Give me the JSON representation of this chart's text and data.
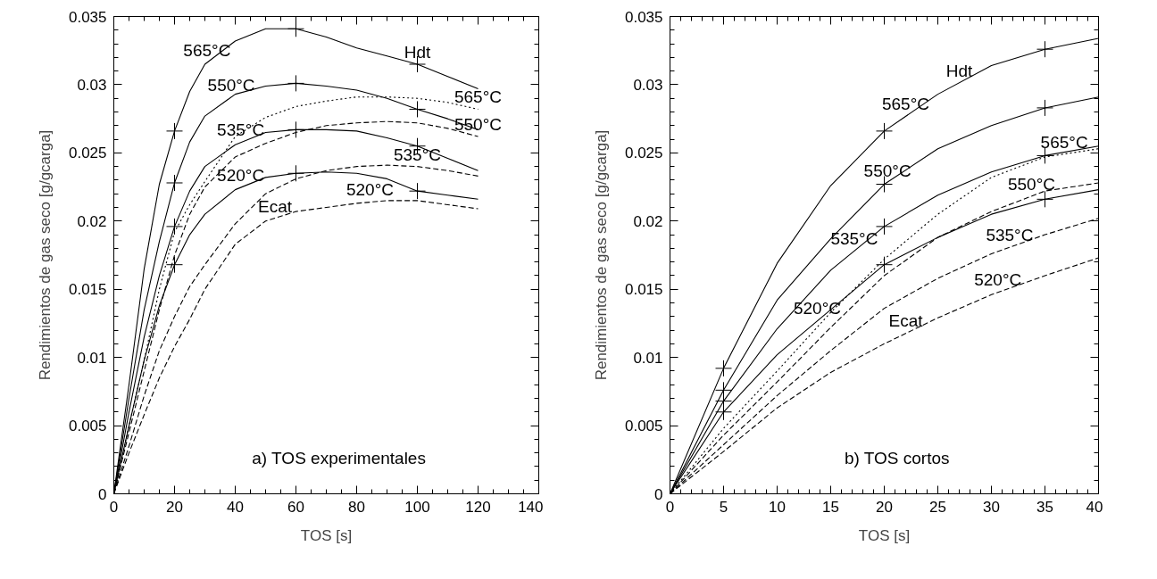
{
  "chart_data": [
    {
      "type": "line",
      "xlabel": "TOS [s]",
      "ylabel": "Rendimientos de gas seco [g/gcarga]",
      "xlim": [
        0,
        140
      ],
      "ylim": [
        0,
        0.035
      ],
      "xticks": [
        0,
        20,
        40,
        60,
        80,
        100,
        120,
        140
      ],
      "yticks": [
        0,
        0.005,
        0.01,
        0.015,
        0.02,
        0.025,
        0.03,
        0.035
      ],
      "x": [
        0,
        5,
        10,
        15,
        20,
        25,
        30,
        40,
        50,
        60,
        70,
        80,
        90,
        100,
        110,
        120
      ],
      "series": [
        {
          "color": "#000000",
          "line_style": "solid",
          "values": [
            0,
            0.008,
            0.0165,
            0.0227,
            0.0266,
            0.0295,
            0.0315,
            0.0332,
            0.0341,
            0.0341,
            0.0335,
            0.0327,
            0.0321,
            0.0315,
            0.0306,
            0.0297
          ]
        },
        {
          "color": "#000000",
          "line_style": "solid",
          "values": [
            0,
            0.007,
            0.0135,
            0.0185,
            0.0228,
            0.0258,
            0.0277,
            0.0293,
            0.0299,
            0.0301,
            0.0299,
            0.0296,
            0.029,
            0.0282,
            0.0275,
            0.0267
          ]
        },
        {
          "color": "#000000",
          "line_style": "solid",
          "values": [
            0,
            0.006,
            0.0115,
            0.016,
            0.0196,
            0.0222,
            0.024,
            0.0256,
            0.0265,
            0.0267,
            0.0267,
            0.0266,
            0.0261,
            0.0255,
            0.0246,
            0.0237
          ]
        },
        {
          "color": "#000000",
          "line_style": "solid",
          "values": [
            0,
            0.005,
            0.0098,
            0.0138,
            0.0168,
            0.019,
            0.0205,
            0.0223,
            0.0232,
            0.0235,
            0.0236,
            0.0235,
            0.0231,
            0.0222,
            0.0219,
            0.0216
          ]
        },
        {
          "color": "#000000",
          "line_style": "dotted",
          "values": [
            0,
            0.005,
            0.0098,
            0.015,
            0.0192,
            0.0212,
            0.0229,
            0.0262,
            0.0276,
            0.0284,
            0.0288,
            0.0291,
            0.0291,
            0.029,
            0.0287,
            0.0282
          ]
        },
        {
          "color": "#000000",
          "line_style": "dashed",
          "values": [
            0,
            0.0045,
            0.009,
            0.0135,
            0.0175,
            0.0205,
            0.0225,
            0.0247,
            0.0257,
            0.0265,
            0.027,
            0.0272,
            0.0273,
            0.0272,
            0.0268,
            0.0262
          ]
        },
        {
          "color": "#000000",
          "line_style": "dashed",
          "values": [
            0,
            0.0035,
            0.0072,
            0.0105,
            0.013,
            0.0152,
            0.0168,
            0.0198,
            0.022,
            0.0231,
            0.0237,
            0.024,
            0.0241,
            0.024,
            0.0237,
            0.0233
          ]
        },
        {
          "color": "#000000",
          "line_style": "dashed",
          "values": [
            0,
            0.003,
            0.0058,
            0.0085,
            0.0108,
            0.0128,
            0.015,
            0.0183,
            0.02,
            0.0207,
            0.021,
            0.0213,
            0.0215,
            0.0215,
            0.0212,
            0.0209
          ]
        },
        {
          "type": "scatter",
          "marker": "cross",
          "color": "#000000",
          "x": [
            20,
            60,
            100
          ],
          "values": [
            0.0266,
            0.0341,
            0.0315
          ]
        },
        {
          "type": "scatter",
          "marker": "cross",
          "color": "#000000",
          "x": [
            20,
            60,
            100
          ],
          "values": [
            0.0228,
            0.0301,
            0.0282
          ]
        },
        {
          "type": "scatter",
          "marker": "cross",
          "color": "#000000",
          "x": [
            20,
            60,
            100
          ],
          "values": [
            0.0196,
            0.0267,
            0.0255
          ]
        },
        {
          "type": "scatter",
          "marker": "cross",
          "color": "#000000",
          "x": [
            20,
            60,
            100
          ],
          "values": [
            0.0168,
            0.0235,
            0.0222
          ]
        }
      ],
      "annotations": [
        {
          "text": "565°C",
          "x": 30.7,
          "y": 0.0316
        },
        {
          "text": "550°C",
          "x": 38.7,
          "y": 0.0291
        },
        {
          "text": "535°C",
          "x": 41.8,
          "y": 0.0258
        },
        {
          "text": "520°C",
          "x": 41.8,
          "y": 0.0225
        },
        {
          "text": "Hdt",
          "x": 100,
          "y": 0.0315
        },
        {
          "text": "565°C",
          "x": 120,
          "y": 0.0282
        },
        {
          "text": "550°C",
          "x": 120,
          "y": 0.0262
        },
        {
          "text": "535°C",
          "x": 100,
          "y": 0.024
        },
        {
          "text": "520°C",
          "x": 84.4,
          "y": 0.0214
        },
        {
          "text": "Ecat",
          "x": 53.1,
          "y": 0.0202
        },
        "a) TOS experimentales"
      ]
    },
    {
      "type": "line",
      "xlabel": "TOS [s]",
      "ylabel": "Rendimientos de gas seco [g/gcarga]",
      "xlim": [
        0,
        40
      ],
      "ylim": [
        0,
        0.035
      ],
      "xticks": [
        0,
        5,
        10,
        15,
        20,
        25,
        30,
        35,
        40
      ],
      "yticks": [
        0,
        0.005,
        0.01,
        0.015,
        0.02,
        0.025,
        0.03,
        0.035
      ],
      "x": [
        0,
        5,
        10,
        15,
        20,
        25,
        30,
        35,
        40
      ],
      "series": [
        {
          "color": "#000000",
          "line_style": "solid",
          "values": [
            0,
            0.0092,
            0.0169,
            0.0226,
            0.0266,
            0.0293,
            0.0314,
            0.0326,
            0.0334
          ]
        },
        {
          "color": "#000000",
          "line_style": "solid",
          "values": [
            0,
            0.0076,
            0.0142,
            0.0187,
            0.0227,
            0.0253,
            0.027,
            0.0283,
            0.0291
          ]
        },
        {
          "color": "#000000",
          "line_style": "solid",
          "values": [
            0,
            0.0068,
            0.0121,
            0.0164,
            0.0196,
            0.0219,
            0.0236,
            0.0248,
            0.0255
          ]
        },
        {
          "color": "#000000",
          "line_style": "solid",
          "values": [
            0,
            0.006,
            0.0102,
            0.0135,
            0.0168,
            0.0188,
            0.0205,
            0.0216,
            0.0223
          ]
        },
        {
          "color": "#000000",
          "line_style": "dotted",
          "values": [
            0,
            0.0048,
            0.009,
            0.0133,
            0.0172,
            0.0205,
            0.0232,
            0.0247,
            0.0253
          ]
        },
        {
          "color": "#000000",
          "line_style": "dashed",
          "values": [
            0,
            0.0043,
            0.0082,
            0.0122,
            0.016,
            0.0188,
            0.0207,
            0.0222,
            0.0228
          ]
        },
        {
          "color": "#000000",
          "line_style": "dashed",
          "values": [
            0,
            0.0036,
            0.0072,
            0.0105,
            0.0136,
            0.0158,
            0.0176,
            0.019,
            0.0202
          ]
        },
        {
          "color": "#000000",
          "line_style": "dashed",
          "values": [
            0,
            0.0031,
            0.0063,
            0.0089,
            0.011,
            0.0129,
            0.0146,
            0.016,
            0.0173
          ]
        },
        {
          "type": "scatter",
          "marker": "cross",
          "color": "#000000",
          "x": [
            5,
            20,
            35
          ],
          "values": [
            0.0092,
            0.0266,
            0.0326
          ]
        },
        {
          "type": "scatter",
          "marker": "cross",
          "color": "#000000",
          "x": [
            5,
            20,
            35
          ],
          "values": [
            0.0076,
            0.0227,
            0.0283
          ]
        },
        {
          "type": "scatter",
          "marker": "cross",
          "color": "#000000",
          "x": [
            5,
            20,
            35
          ],
          "values": [
            0.0068,
            0.0196,
            0.0248
          ]
        },
        {
          "type": "scatter",
          "marker": "cross",
          "color": "#000000",
          "x": [
            5,
            20,
            35
          ],
          "values": [
            0.006,
            0.0168,
            0.0216
          ]
        }
      ],
      "annotations": [
        {
          "text": "Hdt",
          "x": 27,
          "y": 0.0301
        },
        {
          "text": "565°C",
          "x": 22,
          "y": 0.0277
        },
        {
          "text": "550°C",
          "x": 20.3,
          "y": 0.0228
        },
        {
          "text": "535°C",
          "x": 17.2,
          "y": 0.0178
        },
        {
          "text": "520°C",
          "x": 13.75,
          "y": 0.0127
        },
        {
          "text": "565°C",
          "x": 36.8,
          "y": 0.0249
        },
        {
          "text": "550°C",
          "x": 33.75,
          "y": 0.0218
        },
        {
          "text": "535°C",
          "x": 31.7,
          "y": 0.0181
        },
        {
          "text": "520°C",
          "x": 30.6,
          "y": 0.0148
        },
        {
          "text": "Ecat",
          "x": 22,
          "y": 0.0118
        },
        "b) TOS cortos"
      ]
    }
  ]
}
